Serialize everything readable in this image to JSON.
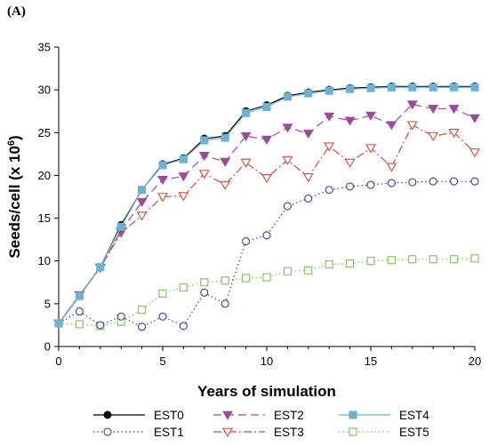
{
  "panel_label": "(A)",
  "chart_data": {
    "type": "line",
    "xlabel": "Years of simulation",
    "ylabel_main": "Seeds/cell (x 10",
    "ylabel_exp": "6",
    "ylabel_close": ")",
    "xlim": [
      0,
      20
    ],
    "ylim": [
      0,
      35
    ],
    "xticks": [
      0,
      5,
      10,
      15,
      20
    ],
    "yticks": [
      0,
      5,
      10,
      15,
      20,
      25,
      30,
      35
    ],
    "grid": false,
    "x": [
      0,
      1,
      2,
      3,
      4,
      5,
      6,
      7,
      8,
      9,
      10,
      11,
      12,
      13,
      14,
      15,
      16,
      17,
      18,
      19,
      20
    ],
    "series": [
      {
        "name": "EST0",
        "color": "#000000",
        "marker": "circle-filled",
        "dash": "",
        "values": [
          2.7,
          5.9,
          9.3,
          14.2,
          18.3,
          21.3,
          22.0,
          24.3,
          24.6,
          27.5,
          28.2,
          29.3,
          29.7,
          30.0,
          30.2,
          30.3,
          30.4,
          30.4,
          30.4,
          30.4,
          30.4
        ]
      },
      {
        "name": "EST1",
        "color": "#3a3aa8",
        "marker": "circle-open",
        "dash": "1.5,3",
        "values": [
          2.7,
          4.1,
          2.5,
          3.5,
          2.3,
          3.5,
          2.4,
          6.3,
          5.0,
          12.3,
          13.0,
          16.4,
          17.3,
          18.3,
          18.7,
          18.9,
          19.1,
          19.2,
          19.3,
          19.3,
          19.3
        ]
      },
      {
        "name": "EST2",
        "color": "#9a4c9c",
        "marker": "triangle-down-filled",
        "dash": "9,5",
        "values": [
          2.7,
          6.0,
          9.2,
          13.5,
          16.9,
          19.5,
          19.9,
          22.3,
          21.6,
          24.6,
          24.2,
          25.6,
          24.9,
          26.9,
          26.4,
          27.0,
          25.9,
          28.3,
          27.8,
          27.8,
          26.7
        ]
      },
      {
        "name": "EST3",
        "color": "#d04a3a",
        "marker": "triangle-down-open",
        "dash": "9,3,2,3",
        "values": [
          2.7,
          6.0,
          9.2,
          13.3,
          15.3,
          17.5,
          17.6,
          20.2,
          18.9,
          21.5,
          19.7,
          21.8,
          19.8,
          23.4,
          21.5,
          23.2,
          21.0,
          25.9,
          24.6,
          25.0,
          22.7
        ]
      },
      {
        "name": "EST4",
        "color": "#6cb2d2",
        "marker": "square-filled",
        "dash": "",
        "values": [
          2.7,
          5.9,
          9.3,
          14.0,
          18.3,
          21.2,
          21.9,
          24.1,
          24.4,
          27.3,
          28.0,
          29.2,
          29.6,
          29.9,
          30.1,
          30.2,
          30.3,
          30.3,
          30.3,
          30.3,
          30.3
        ]
      },
      {
        "name": "EST5",
        "color": "#7cbf5a",
        "marker": "square-open",
        "dash": "1.5,3",
        "values": [
          2.7,
          2.6,
          2.4,
          2.9,
          4.3,
          6.2,
          6.9,
          7.5,
          7.7,
          8.0,
          8.1,
          8.8,
          8.9,
          9.6,
          9.7,
          10.0,
          10.1,
          10.2,
          10.2,
          10.2,
          10.3
        ]
      }
    ],
    "legend_position": "bottom"
  }
}
